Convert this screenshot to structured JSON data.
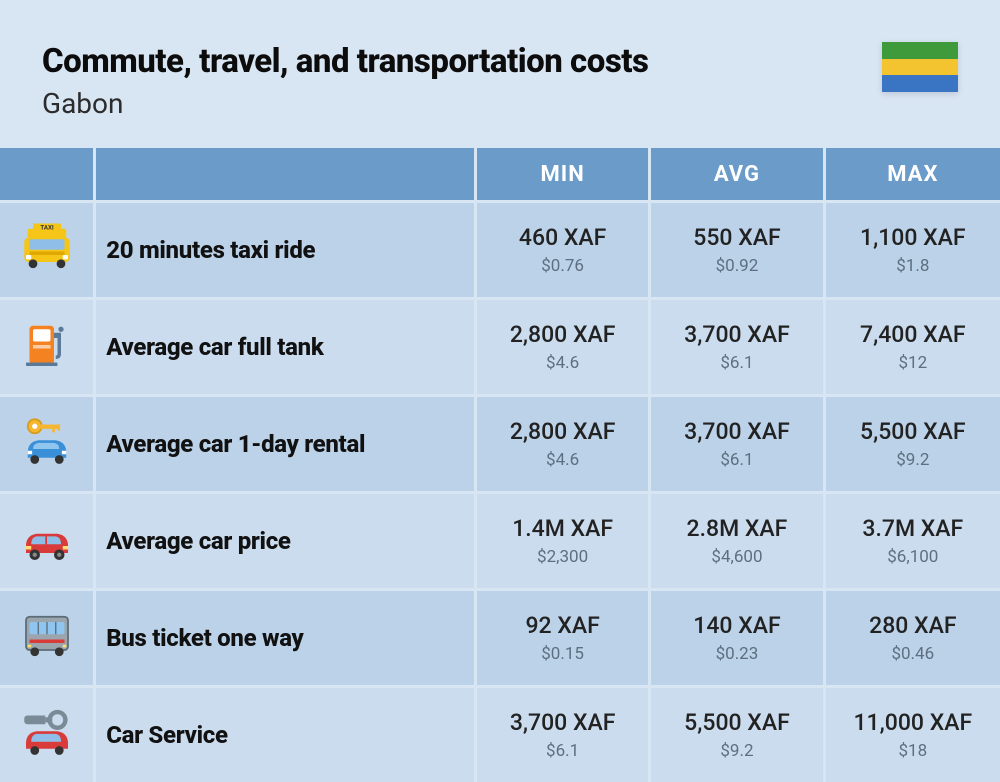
{
  "header": {
    "title": "Commute, travel, and transportation costs",
    "subtitle": "Gabon",
    "flag_colors": [
      "#3e9a3b",
      "#f4c430",
      "#3a75c4"
    ]
  },
  "table": {
    "columns": {
      "min": "MIN",
      "avg": "AVG",
      "max": "MAX"
    },
    "row_colors": {
      "even": "#bcd2e9",
      "odd": "#cbdcee"
    },
    "header_bg": "#6a9bc9",
    "rows": [
      {
        "icon": "taxi-icon",
        "label": "20 minutes taxi ride",
        "min": {
          "primary": "460 XAF",
          "secondary": "$0.76"
        },
        "avg": {
          "primary": "550 XAF",
          "secondary": "$0.92"
        },
        "max": {
          "primary": "1,100 XAF",
          "secondary": "$1.8"
        }
      },
      {
        "icon": "fuel-pump-icon",
        "label": "Average car full tank",
        "min": {
          "primary": "2,800 XAF",
          "secondary": "$4.6"
        },
        "avg": {
          "primary": "3,700 XAF",
          "secondary": "$6.1"
        },
        "max": {
          "primary": "7,400 XAF",
          "secondary": "$12"
        }
      },
      {
        "icon": "car-key-icon",
        "label": "Average car 1-day rental",
        "min": {
          "primary": "2,800 XAF",
          "secondary": "$4.6"
        },
        "avg": {
          "primary": "3,700 XAF",
          "secondary": "$6.1"
        },
        "max": {
          "primary": "5,500 XAF",
          "secondary": "$9.2"
        }
      },
      {
        "icon": "car-price-icon",
        "label": "Average car price",
        "min": {
          "primary": "1.4M XAF",
          "secondary": "$2,300"
        },
        "avg": {
          "primary": "2.8M XAF",
          "secondary": "$4,600"
        },
        "max": {
          "primary": "3.7M XAF",
          "secondary": "$6,100"
        }
      },
      {
        "icon": "bus-icon",
        "label": "Bus ticket one way",
        "min": {
          "primary": "92 XAF",
          "secondary": "$0.15"
        },
        "avg": {
          "primary": "140 XAF",
          "secondary": "$0.23"
        },
        "max": {
          "primary": "280 XAF",
          "secondary": "$0.46"
        }
      },
      {
        "icon": "car-service-icon",
        "label": "Car Service",
        "min": {
          "primary": "3,700 XAF",
          "secondary": "$6.1"
        },
        "avg": {
          "primary": "5,500 XAF",
          "secondary": "$9.2"
        },
        "max": {
          "primary": "11,000 XAF",
          "secondary": "$18"
        }
      }
    ]
  }
}
